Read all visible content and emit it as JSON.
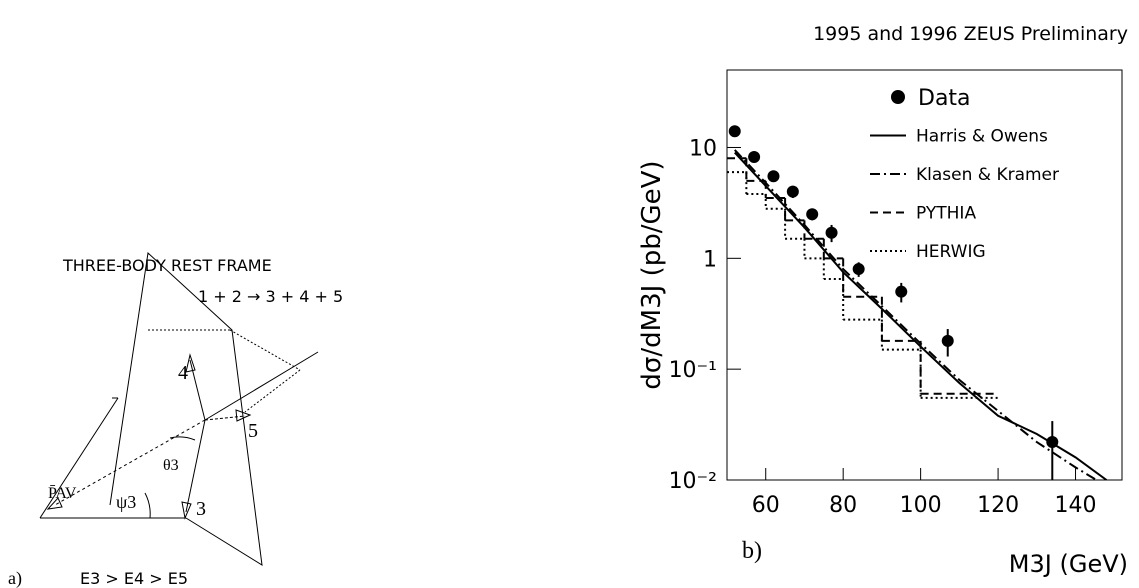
{
  "diagram": {
    "title": "THREE-BODY REST FRAME",
    "reaction": "1 + 2 → 3 + 4 + 5",
    "labels": [
      "4",
      "5",
      "3",
      "θ3",
      "ψ3",
      "P̄AV"
    ],
    "panel": "a)",
    "ordering": "E3 >  E4 >  E5"
  },
  "chart_data": {
    "type": "log-scatter-lines",
    "title": "1995 and 1996 ZEUS Preliminary",
    "panel": "b)",
    "x_label": "M3J (GeV)",
    "y_label": "dσ/dM3J (pb/GeV)",
    "log_y": true,
    "xlim": [
      50,
      152
    ],
    "ylim": [
      0.01,
      50
    ],
    "xticks": [
      60,
      80,
      100,
      120,
      140
    ],
    "yticks": [
      {
        "value": 0.01,
        "label": "10⁻²"
      },
      {
        "value": 0.1,
        "label": "10⁻¹"
      },
      1,
      10
    ],
    "series": [
      {
        "name": "Data",
        "style": "points",
        "color": "#000000",
        "x": [
          52,
          57,
          62,
          67,
          72,
          77,
          84,
          95,
          107,
          134
        ],
        "values": [
          14,
          8.2,
          5.5,
          4,
          2.5,
          1.7,
          0.8,
          0.5,
          0.18,
          0.022
        ],
        "errors": [
          1.5,
          0.9,
          0.6,
          0.5,
          0.3,
          0.3,
          0.12,
          0.1,
          0.05,
          0.012
        ]
      },
      {
        "name": "Harris & Owens",
        "style": "solid",
        "color": "#000000",
        "x": [
          52,
          60,
          70,
          80,
          90,
          100,
          110,
          120,
          130,
          140,
          148
        ],
        "values": [
          9,
          4.5,
          1.9,
          0.75,
          0.35,
          0.16,
          0.075,
          0.038,
          0.026,
          0.016,
          0.01
        ]
      },
      {
        "name": "Klasen & Kramer",
        "style": "dashdot",
        "color": "#000000",
        "x": [
          52,
          60,
          70,
          80,
          90,
          100,
          110,
          120,
          130,
          140,
          150
        ],
        "values": [
          9.5,
          4.8,
          2,
          0.8,
          0.37,
          0.17,
          0.08,
          0.042,
          0.022,
          0.013,
          0.008
        ]
      },
      {
        "name": "PYTHIA",
        "style": "dashed",
        "color": "#000000",
        "bins": [
          50,
          55,
          60,
          65,
          70,
          75,
          80,
          90,
          100,
          120
        ],
        "values": [
          8,
          5,
          3.5,
          2.2,
          1.5,
          1,
          0.45,
          0.18,
          0.06
        ]
      },
      {
        "name": "HERWIG",
        "style": "dotted",
        "color": "#000000",
        "bins": [
          50,
          55,
          60,
          65,
          70,
          75,
          80,
          90,
          100,
          120
        ],
        "values": [
          6,
          3.8,
          2.8,
          1.5,
          1,
          0.65,
          0.28,
          0.15,
          0.055
        ]
      }
    ]
  }
}
